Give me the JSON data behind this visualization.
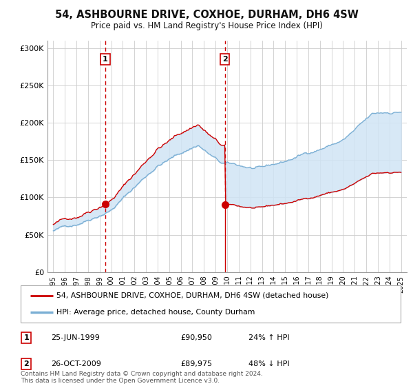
{
  "title": "54, ASHBOURNE DRIVE, COXHOE, DURHAM, DH6 4SW",
  "subtitle": "Price paid vs. HM Land Registry's House Price Index (HPI)",
  "legend_line1": "54, ASHBOURNE DRIVE, COXHOE, DURHAM, DH6 4SW (detached house)",
  "legend_line2": "HPI: Average price, detached house, County Durham",
  "annotation1_label": "1",
  "annotation1_date": "25-JUN-1999",
  "annotation1_price": "£90,950",
  "annotation1_hpi": "24% ↑ HPI",
  "annotation2_label": "2",
  "annotation2_date": "26-OCT-2009",
  "annotation2_price": "£89,975",
  "annotation2_hpi": "48% ↓ HPI",
  "footer": "Contains HM Land Registry data © Crown copyright and database right 2024.\nThis data is licensed under the Open Government Licence v3.0.",
  "sale1_year": 1999.48,
  "sale1_price": 90950,
  "sale2_year": 2009.81,
  "sale2_price": 89975,
  "hpi_color": "#7bafd4",
  "property_color": "#cc0000",
  "vline_color": "#cc0000",
  "dot_color": "#cc0000",
  "fill_color": "#d0e4f5",
  "ylim_min": 0,
  "ylim_max": 310000,
  "xlim_min": 1994.5,
  "xlim_max": 2025.5,
  "background_color": "#ffffff",
  "grid_color": "#cccccc"
}
